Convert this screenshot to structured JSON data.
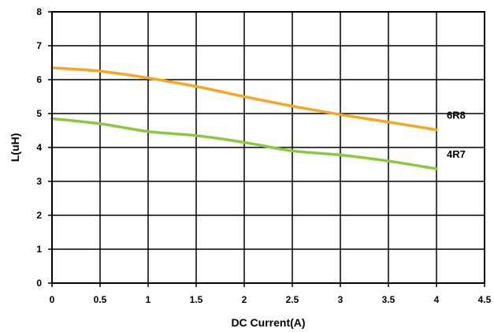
{
  "chart_data": {
    "type": "line",
    "title": "",
    "xlabel": "DC Current(A)",
    "ylabel": "L(uH)",
    "xlim": [
      0,
      4.5
    ],
    "ylim": [
      0,
      8
    ],
    "xticks": [
      0,
      0.5,
      1,
      1.5,
      2,
      2.5,
      3,
      3.5,
      4,
      4.5
    ],
    "xtick_labels": [
      "0",
      "0.5",
      "1",
      "1.5",
      "2",
      "2.5",
      "3",
      "3.5",
      "4",
      "4.5"
    ],
    "yticks": [
      0,
      1,
      2,
      3,
      4,
      5,
      6,
      7,
      8
    ],
    "ytick_labels": [
      "0",
      "1",
      "2",
      "3",
      "4",
      "5",
      "6",
      "7",
      "8"
    ],
    "grid": true,
    "legend": "none",
    "series": [
      {
        "name": "6R8",
        "color": "#F5A623",
        "x": [
          0,
          0.5,
          1.0,
          1.5,
          2.0,
          2.5,
          3.0,
          3.5,
          4.0
        ],
        "y": [
          6.35,
          6.25,
          6.05,
          5.8,
          5.5,
          5.22,
          4.97,
          4.75,
          4.52
        ]
      },
      {
        "name": "4R7",
        "color": "#8DC63F",
        "x": [
          0,
          0.5,
          1.0,
          1.5,
          2.0,
          2.5,
          3.0,
          3.5,
          4.0
        ],
        "y": [
          4.85,
          4.7,
          4.47,
          4.35,
          4.15,
          3.9,
          3.78,
          3.6,
          3.37
        ]
      }
    ]
  }
}
